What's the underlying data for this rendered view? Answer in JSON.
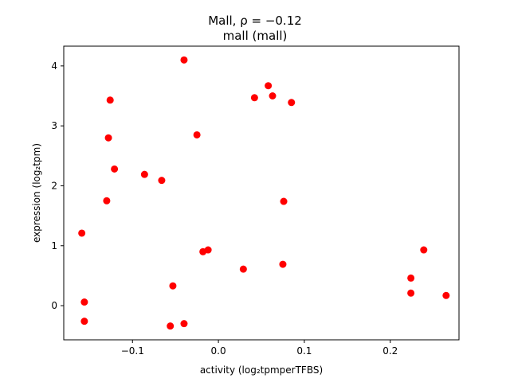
{
  "chart_data": {
    "type": "scatter",
    "title_line1": "Mall, ρ = −0.12",
    "title_line2": "mall (mall)",
    "xlabel": "activity (log₂tpmperTFBS)",
    "ylabel": "expression (log₂tpm)",
    "xlim": [
      -0.18,
      0.28
    ],
    "ylim": [
      -0.57,
      4.33
    ],
    "xticks": [
      -0.1,
      0.0,
      0.1,
      0.2
    ],
    "xtick_labels": [
      "−0.1",
      "0.0",
      "0.1",
      "0.2"
    ],
    "yticks": [
      0,
      1,
      2,
      3,
      4
    ],
    "ytick_labels": [
      "0",
      "1",
      "2",
      "3",
      "4"
    ],
    "grid": false,
    "point_color": "#ff0000",
    "points": [
      {
        "x": -0.04,
        "y": 4.1
      },
      {
        "x": 0.058,
        "y": 3.67
      },
      {
        "x": 0.042,
        "y": 3.47
      },
      {
        "x": 0.063,
        "y": 3.5
      },
      {
        "x": 0.085,
        "y": 3.39
      },
      {
        "x": -0.126,
        "y": 3.43
      },
      {
        "x": -0.128,
        "y": 2.8
      },
      {
        "x": -0.025,
        "y": 2.85
      },
      {
        "x": -0.121,
        "y": 2.28
      },
      {
        "x": -0.086,
        "y": 2.19
      },
      {
        "x": -0.066,
        "y": 2.09
      },
      {
        "x": -0.13,
        "y": 1.75
      },
      {
        "x": 0.076,
        "y": 1.74
      },
      {
        "x": -0.159,
        "y": 1.21
      },
      {
        "x": -0.018,
        "y": 0.9
      },
      {
        "x": -0.012,
        "y": 0.93
      },
      {
        "x": 0.029,
        "y": 0.61
      },
      {
        "x": 0.075,
        "y": 0.69
      },
      {
        "x": -0.053,
        "y": 0.33
      },
      {
        "x": -0.156,
        "y": 0.06
      },
      {
        "x": -0.156,
        "y": -0.26
      },
      {
        "x": -0.056,
        "y": -0.34
      },
      {
        "x": -0.04,
        "y": -0.3
      },
      {
        "x": 0.224,
        "y": 0.46
      },
      {
        "x": 0.224,
        "y": 0.21
      },
      {
        "x": 0.239,
        "y": 0.93
      },
      {
        "x": 0.265,
        "y": 0.17
      }
    ]
  }
}
